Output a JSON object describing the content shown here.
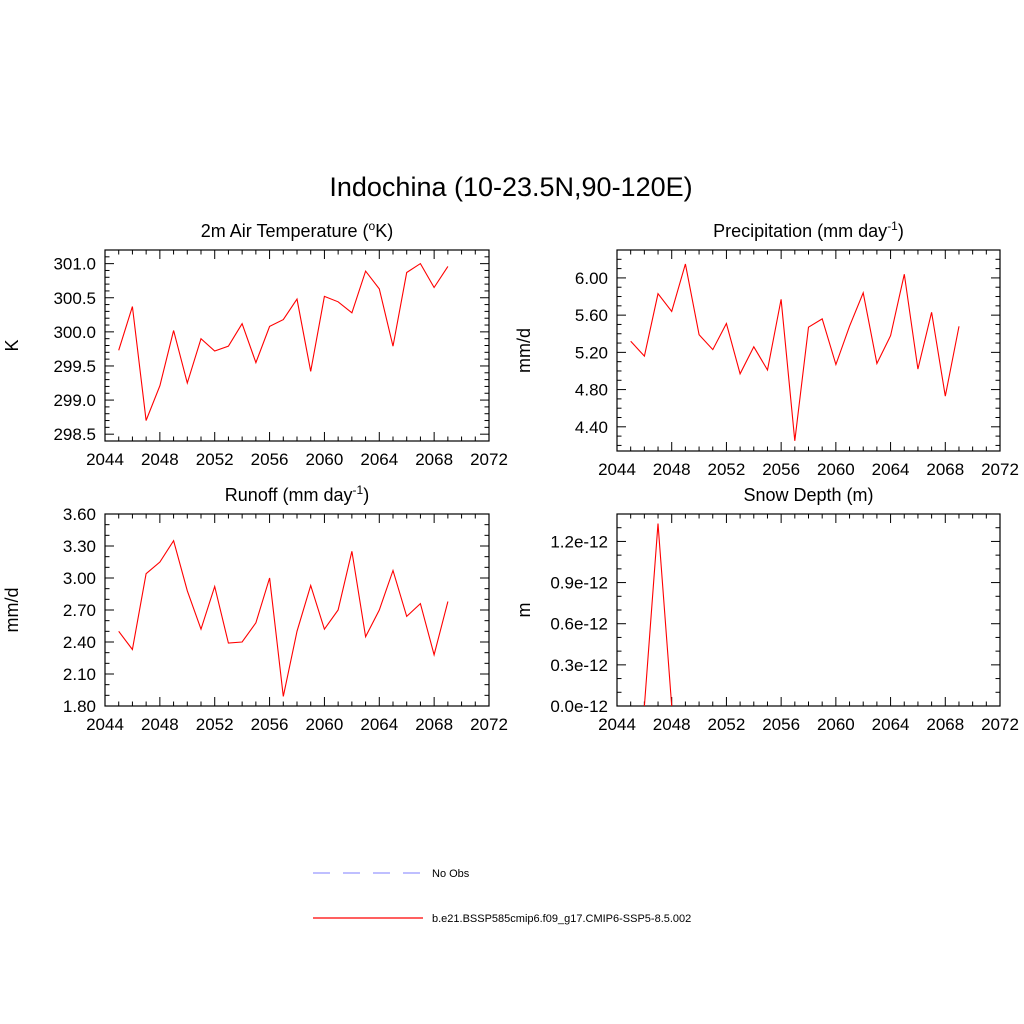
{
  "figure": {
    "title": "Indochina (10-23.5N,90-120E)"
  },
  "chart_data": [
    {
      "id": "temp",
      "type": "line",
      "title": "2m Air Temperature (",
      "title_sup": "o",
      "title_after": "K)",
      "xlabel": "",
      "ylabel": "K",
      "xlim": [
        2044,
        2072
      ],
      "ylim": [
        298.4,
        301.2
      ],
      "x_ticks": [
        2044,
        2048,
        2052,
        2056,
        2060,
        2064,
        2068,
        2072
      ],
      "y_ticks": [
        "298.5",
        "299.0",
        "299.5",
        "300.0",
        "300.5",
        "301.0"
      ],
      "y_minor_step": 0.1,
      "series": [
        {
          "color": "#ff0000",
          "x": [
            2045,
            2046,
            2047,
            2048,
            2049,
            2050,
            2051,
            2052,
            2053,
            2054,
            2055,
            2056,
            2057,
            2058,
            2059,
            2060,
            2061,
            2062,
            2063,
            2064,
            2065,
            2066,
            2067,
            2068,
            2069
          ],
          "y": [
            299.73,
            300.37,
            298.7,
            299.21,
            300.02,
            299.25,
            299.9,
            299.72,
            299.79,
            300.12,
            299.55,
            300.08,
            300.18,
            300.48,
            299.42,
            300.52,
            300.44,
            300.28,
            300.89,
            300.63,
            299.79,
            300.87,
            301.0,
            300.65,
            300.96
          ]
        }
      ]
    },
    {
      "id": "precip",
      "type": "line",
      "title": "Precipitation (mm day",
      "title_sup": "-1",
      "title_after": ")",
      "xlabel": "",
      "ylabel": "mm/d",
      "xlim": [
        2044,
        2072
      ],
      "ylim": [
        4.14,
        6.3
      ],
      "x_ticks": [
        2044,
        2048,
        2052,
        2056,
        2060,
        2064,
        2068,
        2072
      ],
      "y_ticks": [
        "4.40",
        "4.80",
        "5.20",
        "5.60",
        "6.00"
      ],
      "y_minor_step": 0.1,
      "series": [
        {
          "color": "#ff0000",
          "x": [
            2045,
            2046,
            2047,
            2048,
            2049,
            2050,
            2051,
            2052,
            2053,
            2054,
            2055,
            2056,
            2057,
            2058,
            2059,
            2060,
            2061,
            2062,
            2063,
            2064,
            2065,
            2066,
            2067,
            2068,
            2069
          ],
          "y": [
            5.32,
            5.16,
            5.83,
            5.64,
            6.15,
            5.39,
            5.23,
            5.51,
            4.97,
            5.26,
            5.01,
            5.77,
            4.25,
            5.47,
            5.56,
            5.07,
            5.48,
            5.84,
            5.08,
            5.38,
            6.04,
            5.02,
            5.63,
            4.73,
            5.48
          ]
        }
      ]
    },
    {
      "id": "runoff",
      "type": "line",
      "title": "Runoff (mm day",
      "title_sup": "-1",
      "title_after": ")",
      "xlabel": "",
      "ylabel": "mm/d",
      "xlim": [
        2044,
        2072
      ],
      "ylim": [
        1.8,
        3.6
      ],
      "x_ticks": [
        2044,
        2048,
        2052,
        2056,
        2060,
        2064,
        2068,
        2072
      ],
      "y_ticks": [
        "1.80",
        "2.10",
        "2.40",
        "2.70",
        "3.00",
        "3.30",
        "3.60"
      ],
      "y_minor_step": 0.1,
      "series": [
        {
          "color": "#ff0000",
          "x": [
            2045,
            2046,
            2047,
            2048,
            2049,
            2050,
            2051,
            2052,
            2053,
            2054,
            2055,
            2056,
            2057,
            2058,
            2059,
            2060,
            2061,
            2062,
            2063,
            2064,
            2065,
            2066,
            2067,
            2068,
            2069
          ],
          "y": [
            2.5,
            2.33,
            3.04,
            3.15,
            3.35,
            2.88,
            2.52,
            2.92,
            2.39,
            2.4,
            2.58,
            3.0,
            1.89,
            2.5,
            2.93,
            2.52,
            2.7,
            3.25,
            2.45,
            2.7,
            3.07,
            2.64,
            2.76,
            2.28,
            2.78
          ]
        }
      ]
    },
    {
      "id": "snow",
      "type": "line",
      "title": "Snow Depth (m)",
      "title_sup": "",
      "title_after": "",
      "xlabel": "",
      "ylabel": "m",
      "xlim": [
        2044,
        2072
      ],
      "ylim": [
        0.0,
        1.4
      ],
      "x_ticks": [
        2044,
        2048,
        2052,
        2056,
        2060,
        2064,
        2068,
        2072
      ],
      "y_ticks": [
        "0.0e-12",
        "0.3e-12",
        "0.6e-12",
        "0.9e-12",
        "1.2e-12"
      ],
      "y_tick_values": [
        0.0,
        0.3,
        0.6,
        0.9,
        1.2
      ],
      "y_unit_note": "values in units of 1e-12 m",
      "y_minor_step": 0.1,
      "series": [
        {
          "color": "#ff0000",
          "x": [
            2046,
            2047,
            2048
          ],
          "y": [
            0.0,
            1.33,
            0.0
          ]
        }
      ]
    }
  ],
  "legend": {
    "items": [
      {
        "label": "No Obs",
        "color": "#9999ff",
        "style": "dashed"
      },
      {
        "label": "b.e21.BSSP585cmip6.f09_g17.CMIP6-SSP5-8.5.002",
        "color": "#ff0000",
        "style": "solid"
      }
    ]
  }
}
